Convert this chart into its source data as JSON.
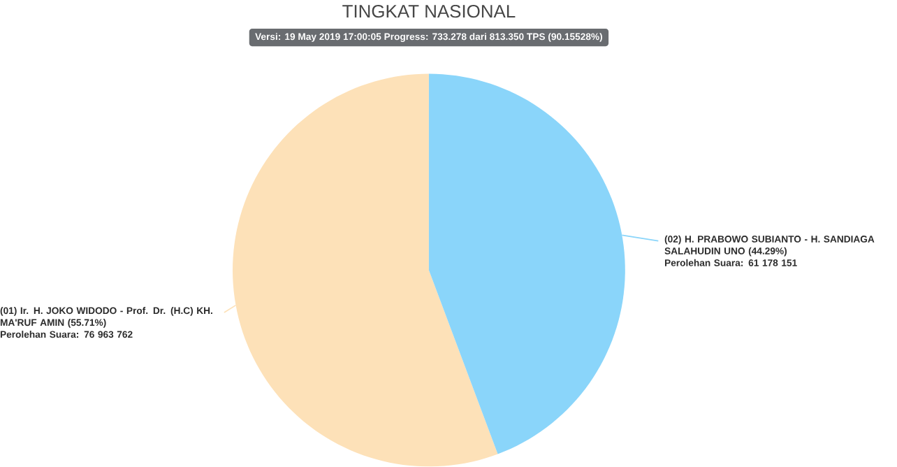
{
  "chart_data": {
    "type": "pie",
    "title": "TINGKAT NASIONAL",
    "subtitle": "Versi: 19 May 2019 17:00:05 Progress: 733.278 dari 813.350 TPS (90.15528%)",
    "categories": [
      "(01) Ir. H. JOKO WIDODO - Prof. Dr. (H.C) KH. MA'RUF AMIN",
      "(02) H. PRABOWO SUBIANTO - H. SANDIAGA SALAHUDIN UNO"
    ],
    "values": [
      55.71,
      44.29
    ],
    "colors": [
      "#fde1b8",
      "#8ad5fa"
    ],
    "value_labels": [
      "(55.71%)",
      "(44.29%)"
    ],
    "annotations": [
      "Perolehan Suara: 76 963 762",
      "Perolehan Suara: 61 178 151"
    ]
  }
}
